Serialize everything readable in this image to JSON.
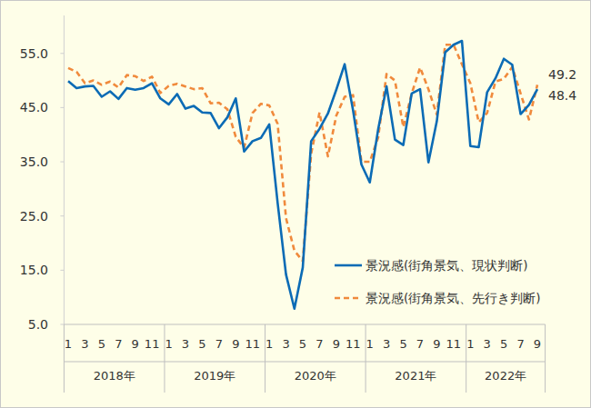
{
  "chart_data": {
    "type": "line",
    "categories": [
      "1",
      null,
      "3",
      null,
      "5",
      null,
      "7",
      null,
      "9",
      null,
      "11",
      null,
      "1",
      null,
      "3",
      null,
      "5",
      null,
      "7",
      null,
      "9",
      null,
      "11",
      null,
      "1",
      null,
      "3",
      null,
      "5",
      null,
      "7",
      null,
      "9",
      null,
      "11",
      null,
      "1",
      null,
      "3",
      null,
      "5",
      null,
      "7",
      null,
      "9",
      null,
      "11",
      null,
      "1",
      null,
      "3",
      null,
      "5",
      null,
      "7",
      null,
      "9"
    ],
    "year_groups": [
      {
        "label": "2018年",
        "count": 12
      },
      {
        "label": "2019年",
        "count": 12
      },
      {
        "label": "2020年",
        "count": 12
      },
      {
        "label": "2021年",
        "count": 12
      },
      {
        "label": "2022年",
        "count": 9
      }
    ],
    "series": [
      {
        "name": "景況感(街角景気、現状判断)",
        "color": "#0b6bb5",
        "line_style": "solid",
        "values": [
          49.9,
          48.6,
          48.9,
          49.0,
          47.0,
          48.0,
          46.6,
          48.6,
          48.3,
          48.6,
          49.5,
          46.7,
          45.6,
          47.5,
          44.8,
          45.3,
          44.1,
          44.0,
          41.2,
          43.2,
          46.7,
          36.9,
          38.8,
          39.4,
          41.9,
          27.4,
          14.2,
          7.9,
          15.5,
          38.8,
          41.1,
          43.9,
          48.3,
          53.0,
          44.5,
          34.5,
          31.2,
          41.0,
          48.9,
          39.1,
          38.1,
          47.6,
          48.4,
          34.9,
          42.5,
          55.2,
          56.6,
          57.3,
          37.9,
          37.7,
          47.8,
          50.4,
          54.0,
          52.9,
          43.8,
          45.5,
          48.4
        ]
      },
      {
        "name": "景況感(街角景気、先行き判断)",
        "color": "#f08a3c",
        "line_style": "dashed",
        "values": [
          52.3,
          51.6,
          49.5,
          50.0,
          49.2,
          49.8,
          48.7,
          51.0,
          50.8,
          49.9,
          50.7,
          47.7,
          49.0,
          49.4,
          48.9,
          48.4,
          48.6,
          45.8,
          45.9,
          44.7,
          39.6,
          37.6,
          44.0,
          45.7,
          45.4,
          42.0,
          24.6,
          18.6,
          16.7,
          36.5,
          44.1,
          36.0,
          43.5,
          47.0,
          47.3,
          35.0,
          35.0,
          39.5,
          51.2,
          50.0,
          41.4,
          47.6,
          52.4,
          48.4,
          43.7,
          56.6,
          56.6,
          53.0,
          49.5,
          42.3,
          44.0,
          49.8,
          50.3,
          52.5,
          47.6,
          42.8,
          49.2
        ]
      }
    ],
    "annotations": [
      {
        "series": 1,
        "index": 56,
        "text": "49.2"
      },
      {
        "series": 0,
        "index": 56,
        "text": "48.4"
      }
    ],
    "ylim": [
      5,
      62
    ],
    "yticks": [
      {
        "value": 5,
        "label": "5.0"
      },
      {
        "value": 15,
        "label": "15.0"
      },
      {
        "value": 25,
        "label": "25.0"
      },
      {
        "value": 35,
        "label": "35.0"
      },
      {
        "value": 45,
        "label": "45.0"
      },
      {
        "value": 55,
        "label": "55.0"
      }
    ],
    "grid": false,
    "legend": "lower right"
  }
}
